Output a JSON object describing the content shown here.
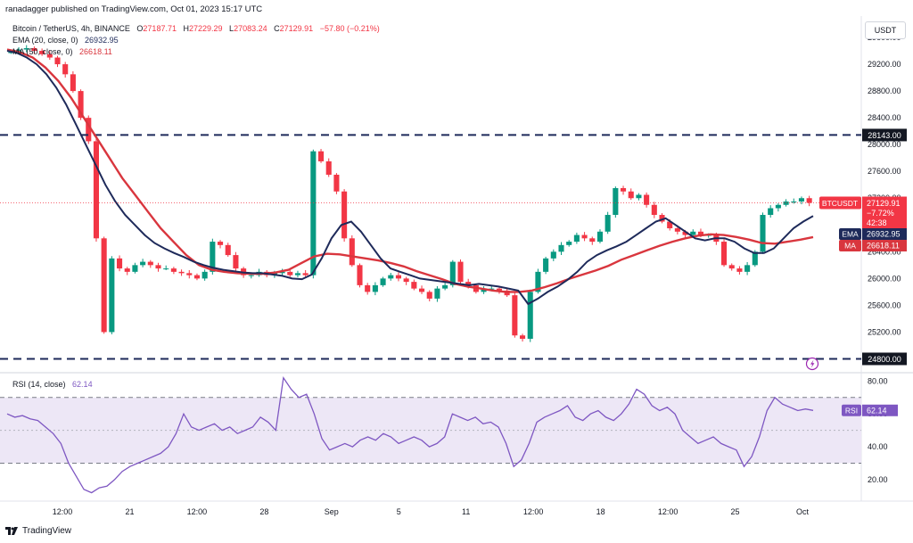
{
  "header": {
    "published": "ranadagger published on TradingView.com, Oct 01, 2023 15:17 UTC",
    "symbol": "Bitcoin / TetherUS, 4h, BINANCE",
    "ohlc": {
      "o_label": "O",
      "o": "27187.71",
      "h_label": "H",
      "h": "27229.29",
      "l_label": "L",
      "l": "27083.24",
      "c_label": "C",
      "c": "27129.91",
      "chg": "−57.80 (−0.21%)"
    },
    "ema_legend": {
      "label": "EMA (20, close, 0)",
      "value": "26932.95"
    },
    "ma_legend": {
      "label": "MA (50, close, 0)",
      "value": "26618.11"
    },
    "currency": "USDT"
  },
  "rsi_legend": {
    "label": "RSI (14, close)",
    "value": "62.14"
  },
  "footer": {
    "brand": "TradingView"
  },
  "colors": {
    "ema": "#1e2a5a",
    "ma": "#d9363e",
    "up": "#089981",
    "down": "#f23645",
    "rsi": "#7e57c2",
    "rsi_band": "#ede7f6",
    "level": "#1e2a5a"
  },
  "chart_data": [
    {
      "type": "line",
      "title": "Bitcoin / TetherUS, 4h, BINANCE",
      "y_axis_ticks": [
        25200,
        25600,
        26000,
        26400,
        26800,
        27200,
        27600,
        28000,
        28400,
        28800,
        29200,
        29600
      ],
      "ylim": [
        24620,
        29760
      ],
      "x_ticks": [
        "12:00",
        "21",
        "12:00",
        "28",
        "Sep",
        "5",
        "11",
        "12:00",
        "18",
        "12:00",
        "25",
        "Oct"
      ],
      "horizontal_levels": [
        {
          "value": 28143.0,
          "label": "28143.00"
        },
        {
          "value": 24800.0,
          "label": "24800.00"
        }
      ],
      "price_labels": [
        {
          "text": "BTCUSDT",
          "value": "27129.91",
          "change": "−7.72%",
          "countdown": "42:38"
        },
        {
          "text": "EMA",
          "value": "26932.95"
        },
        {
          "text": "MA",
          "value": "26618.11"
        }
      ],
      "series": [
        {
          "name": "BTCUSDT",
          "values": [
            29380,
            29420,
            29440,
            29400,
            29350,
            29300,
            29200,
            29050,
            28800,
            28400,
            28050,
            26600,
            25200,
            26300,
            26150,
            26100,
            26200,
            26250,
            26200,
            26150,
            26150,
            26100,
            26080,
            26050,
            26000,
            26100,
            26550,
            26500,
            26350,
            26150,
            26050,
            26050,
            26100,
            26050,
            26080,
            26100,
            26050,
            26080,
            26050,
            27900,
            27750,
            27550,
            27300,
            26600,
            26200,
            25900,
            25800,
            25900,
            26000,
            26050,
            26000,
            25950,
            25850,
            25800,
            25700,
            25850,
            25900,
            26250,
            25950,
            25900,
            25800,
            25850,
            25850,
            25820,
            25750,
            25150,
            25100,
            25800,
            26100,
            26300,
            26400,
            26500,
            26550,
            26650,
            26600,
            26550,
            26700,
            26950,
            27350,
            27300,
            27200,
            27250,
            27100,
            26950,
            26850,
            26750,
            26700,
            26650,
            26700,
            26650,
            26650,
            26550,
            26200,
            26150,
            26100,
            26200,
            26400,
            26950,
            27050,
            27100,
            27150,
            27150,
            27200,
            27129.91
          ]
        },
        {
          "name": "EMA",
          "values": [
            29400,
            29370,
            29300,
            29200,
            29050,
            28850,
            28600,
            28300,
            28000,
            27700,
            27400,
            27150,
            26950,
            26800,
            26650,
            26530,
            26450,
            26380,
            26320,
            26250,
            26200,
            26160,
            26130,
            26110,
            26090,
            26080,
            26080,
            26060,
            26040,
            26000,
            25990,
            26060,
            26300,
            26600,
            26800,
            26850,
            26700,
            26500,
            26300,
            26150,
            26100,
            26050,
            26000,
            25980,
            25960,
            25940,
            25920,
            25900,
            25920,
            25900,
            25880,
            25850,
            25820,
            25620,
            25700,
            25800,
            25880,
            25980,
            26100,
            26250,
            26350,
            26420,
            26480,
            26550,
            26650,
            26750,
            26850,
            26900,
            26800,
            26700,
            26600,
            26570,
            26600,
            26600,
            26550,
            26450,
            26380,
            26380,
            26450,
            26600,
            26750,
            26850,
            26932.95
          ]
        },
        {
          "name": "MA",
          "values": [
            29420,
            29380,
            29300,
            29150,
            28950,
            28700,
            28400,
            28100,
            27800,
            27500,
            27250,
            27000,
            26750,
            26550,
            26350,
            26200,
            26130,
            26100,
            26080,
            26070,
            26070,
            26090,
            26130,
            26230,
            26330,
            26370,
            26360,
            26330,
            26300,
            26270,
            26230,
            26180,
            26110,
            26050,
            25990,
            25920,
            25880,
            25850,
            25820,
            25800,
            25800,
            25820,
            25870,
            25930,
            26000,
            26060,
            26120,
            26190,
            26280,
            26350,
            26420,
            26490,
            26550,
            26600,
            26640,
            26660,
            26650,
            26620,
            26580,
            26530,
            26520,
            26550,
            26580,
            26618.11
          ]
        }
      ]
    },
    {
      "type": "line",
      "title": "RSI (14, close)",
      "y_axis_ticks": [
        20,
        40,
        60,
        80
      ],
      "ylim": [
        8,
        84
      ],
      "bands": [
        {
          "from": 30,
          "to": 70
        }
      ],
      "midline": 50,
      "series": [
        {
          "name": "RSI",
          "values": [
            60,
            58,
            59,
            57,
            56,
            52,
            48,
            42,
            30,
            22,
            14,
            12,
            15,
            16,
            20,
            25,
            28,
            30,
            32,
            34,
            36,
            40,
            48,
            60,
            52,
            50,
            52,
            54,
            50,
            52,
            48,
            50,
            52,
            58,
            55,
            50,
            82,
            75,
            70,
            72,
            60,
            45,
            38,
            40,
            42,
            40,
            44,
            46,
            44,
            48,
            46,
            42,
            44,
            46,
            44,
            40,
            42,
            46,
            60,
            58,
            56,
            58,
            54,
            55,
            52,
            42,
            28,
            32,
            42,
            55,
            58,
            60,
            62,
            65,
            58,
            56,
            60,
            62,
            58,
            56,
            60,
            66,
            75,
            72,
            65,
            62,
            64,
            60,
            50,
            46,
            42,
            44,
            46,
            42,
            40,
            38,
            28,
            34,
            46,
            62,
            70,
            66,
            64,
            62,
            63,
            62.14
          ]
        }
      ]
    }
  ]
}
